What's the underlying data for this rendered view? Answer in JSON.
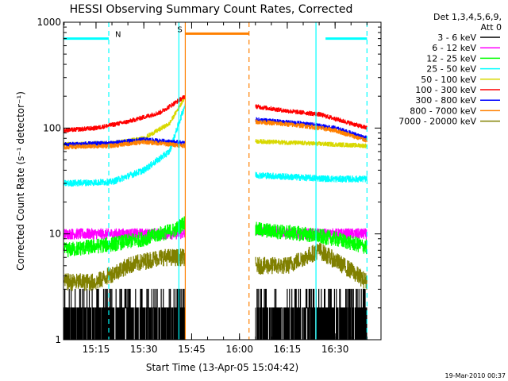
{
  "chart_data": {
    "type": "line",
    "title": "HESSI Observing Summary Count Rates, Corrected",
    "xlabel": "Start Time (13-Apr-05 15:04:42)",
    "ylabel": "Corrected Count Rate (s⁻¹ detector⁻¹)",
    "yscale": "log",
    "ylim": [
      1,
      1000
    ],
    "xlim_minutes": [
      15.08,
      16.74
    ],
    "x_ticks": [
      "15:15",
      "15:30",
      "15:45",
      "16:00",
      "16:15",
      "16:30"
    ],
    "x_tick_values_min": [
      0.25,
      0.5,
      0.75,
      1.0,
      1.25,
      1.5
    ],
    "y_ticks": [
      "1",
      "10",
      "100",
      "1000"
    ],
    "y_tick_values": [
      1,
      10,
      100,
      1000
    ],
    "legend_header": [
      "Det 1,3,4,5,6,9,",
      "Att 0"
    ],
    "legend": [
      {
        "label": "3 - 6 keV",
        "color": "#000000"
      },
      {
        "label": "6 - 12 keV",
        "color": "#ff00ff"
      },
      {
        "label": "12 - 25 keV",
        "color": "#00ff00"
      },
      {
        "label": "25 - 50 keV",
        "color": "#00ffff"
      },
      {
        "label": "50 - 100 keV",
        "color": "#d8d800"
      },
      {
        "label": "100 - 300 keV",
        "color": "#ff0000"
      },
      {
        "label": "300 - 800 keV",
        "color": "#0000ff"
      },
      {
        "label": "800 - 7000 keV",
        "color": "#ff8000"
      },
      {
        "label": "7000 - 20000 keV",
        "color": "#808000"
      }
    ],
    "data_gap": {
      "start": "15:43",
      "end": "16:05"
    },
    "segments": [
      {
        "start": "15:05",
        "end": "15:43"
      },
      {
        "start": "16:05",
        "end": "16:40"
      }
    ],
    "series": [
      {
        "label": "3 - 6 keV",
        "color": "#000000",
        "times": [
          "15:05",
          "15:20",
          "15:35",
          "15:43",
          "16:05",
          "16:20",
          "16:30",
          "16:40"
        ],
        "values": [
          1.5,
          1.5,
          1.5,
          1.5,
          1.5,
          1.5,
          1.5,
          1.5
        ],
        "noise": 0.9
      },
      {
        "label": "6 - 12 keV",
        "color": "#ff00ff",
        "times": [
          "15:05",
          "15:20",
          "15:35",
          "15:43",
          "16:05",
          "16:20",
          "16:30",
          "16:40"
        ],
        "values": [
          10,
          10,
          10,
          10,
          11,
          10,
          10,
          10
        ],
        "noise": 0.05
      },
      {
        "label": "12 - 25 keV",
        "color": "#00ff00",
        "times": [
          "15:05",
          "15:20",
          "15:30",
          "15:40",
          "15:43",
          "16:05",
          "16:20",
          "16:30",
          "16:40"
        ],
        "values": [
          7,
          8,
          9,
          11,
          13,
          11,
          10,
          9,
          7.5
        ],
        "noise": 0.07
      },
      {
        "label": "25 - 50 keV",
        "color": "#00ffff",
        "times": [
          "15:05",
          "15:20",
          "15:30",
          "15:38",
          "15:43",
          "16:05",
          "16:20",
          "16:30",
          "16:40"
        ],
        "values": [
          30,
          31,
          40,
          60,
          170,
          36,
          34,
          33,
          33
        ],
        "noise": 0.03
      },
      {
        "label": "50 - 100 keV",
        "color": "#d8d800",
        "times": [
          "15:05",
          "15:20",
          "15:30",
          "15:38",
          "15:43",
          "16:05",
          "16:20",
          "16:30",
          "16:40"
        ],
        "values": [
          70,
          72,
          80,
          110,
          200,
          75,
          72,
          70,
          68
        ],
        "noise": 0.02
      },
      {
        "label": "100 - 300 keV",
        "color": "#ff0000",
        "times": [
          "15:05",
          "15:15",
          "15:25",
          "15:35",
          "15:43",
          "16:05",
          "16:15",
          "16:25",
          "16:40"
        ],
        "values": [
          95,
          100,
          115,
          140,
          200,
          160,
          145,
          135,
          100
        ],
        "noise": 0.02
      },
      {
        "label": "300 - 800 keV",
        "color": "#0000ff",
        "times": [
          "15:05",
          "15:20",
          "15:30",
          "15:43",
          "16:05",
          "16:20",
          "16:30",
          "16:40"
        ],
        "values": [
          70,
          72,
          78,
          72,
          120,
          110,
          100,
          80
        ],
        "noise": 0.02
      },
      {
        "label": "800 - 7000 keV",
        "color": "#ff8000",
        "times": [
          "15:05",
          "15:20",
          "15:30",
          "15:43",
          "16:05",
          "16:20",
          "16:30",
          "16:40"
        ],
        "values": [
          66,
          68,
          74,
          68,
          115,
          105,
          95,
          76
        ],
        "noise": 0.02
      },
      {
        "label": "7000 - 20000 keV",
        "color": "#808000",
        "times": [
          "15:05",
          "15:15",
          "15:25",
          "15:35",
          "15:43",
          "16:05",
          "16:15",
          "16:25",
          "16:35",
          "16:40"
        ],
        "values": [
          3.5,
          3.5,
          5,
          6,
          6,
          5,
          5,
          7,
          4.5,
          3.5
        ],
        "noise": 0.08
      }
    ],
    "annotations": [
      {
        "label": "N",
        "color": "#00ffff",
        "description": "night",
        "intervals": [
          [
            "15:04:42",
            "15:19"
          ],
          [
            "16:27",
            "16:40"
          ]
        ],
        "level": 700
      },
      {
        "label": "S",
        "color": "#ff8000",
        "description": "SAA",
        "intervals": [
          [
            "15:43",
            "16:03"
          ]
        ],
        "level": 780
      }
    ],
    "solid_markers": [
      {
        "time": "15:41",
        "color": "#00ffff"
      },
      {
        "time": "15:43",
        "color": "#ff8000"
      },
      {
        "time": "16:24",
        "color": "#00ffff"
      }
    ],
    "dashed_markers": [
      {
        "time": "15:19",
        "color": "#00ffff"
      },
      {
        "time": "16:03",
        "color": "#ff8000"
      },
      {
        "time": "16:40",
        "color": "#00ffff"
      }
    ],
    "footer_date": "19-Mar-2010 00:37"
  }
}
